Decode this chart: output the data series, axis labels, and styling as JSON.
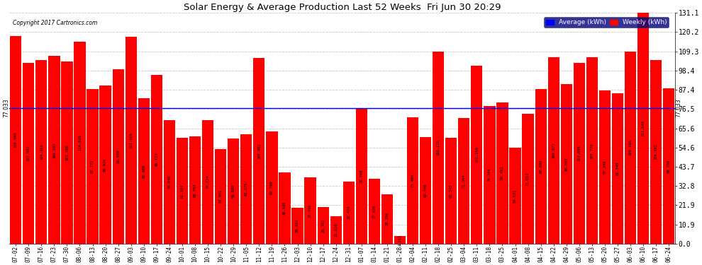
{
  "title": "Solar Energy & Average Production Last 52 Weeks  Fri Jun 30 20:29",
  "copyright": "Copyright 2017 Cartronics.com",
  "average_value": 77.033,
  "bar_color": "#FF0000",
  "average_line_color": "#0000FF",
  "background_color": "#FFFFFF",
  "ylabel_right": [
    "131.1",
    "120.2",
    "109.3",
    "98.4",
    "87.4",
    "76.5",
    "65.6",
    "54.6",
    "43.7",
    "32.8",
    "21.9",
    "10.9",
    "0.0"
  ],
  "ylabel_right_vals": [
    131.1,
    120.2,
    109.3,
    98.4,
    87.4,
    76.5,
    65.6,
    54.6,
    43.7,
    32.8,
    21.9,
    10.9,
    0.0
  ],
  "categories": [
    "07-02",
    "07-09",
    "07-16",
    "07-23",
    "07-30",
    "08-06",
    "08-13",
    "08-20",
    "08-27",
    "09-03",
    "09-10",
    "09-17",
    "09-24",
    "10-01",
    "10-08",
    "10-15",
    "10-22",
    "10-29",
    "11-05",
    "11-12",
    "11-19",
    "11-26",
    "12-03",
    "12-10",
    "12-17",
    "12-24",
    "12-31",
    "01-07",
    "01-14",
    "01-21",
    "01-28",
    "02-04",
    "02-11",
    "02-18",
    "02-25",
    "03-04",
    "03-11",
    "03-18",
    "03-25",
    "04-01",
    "04-08",
    "04-15",
    "04-22",
    "04-29",
    "05-06",
    "05-13",
    "05-20",
    "05-27",
    "06-03",
    "06-10",
    "06-17",
    "06-24"
  ],
  "values": [
    118.098,
    102.902,
    104.456,
    106.592,
    103.506,
    114.816,
    87.772,
    89.926,
    99.036,
    117.426,
    82.606,
    95.714,
    70.04,
    60.164,
    60.794,
    70.224,
    53.952,
    59.68,
    62.27,
    105.402,
    63.788,
    40.426,
    20.424,
    37.796,
    20.702,
    15.81,
    35.474,
    76.708,
    37.026,
    28.256,
    4.312,
    71.66,
    60.446,
    109.236,
    60.348,
    71.364,
    101.15,
    78.164,
    80.452,
    54.532,
    73.652,
    87.692,
    106.072,
    90.592,
    102.696,
    105.776,
    87.248,
    85.548,
    109.196,
    131.148,
    104.392,
    88.256
  ],
  "legend_avg_color": "#0000FF",
  "legend_weekly_color": "#FF0000",
  "legend_avg_text": "Average (kWh)",
  "legend_weekly_text": "Weekly (kWh)",
  "figsize": [
    9.9,
    3.75
  ],
  "dpi": 100,
  "ymax": 131.1,
  "ymin": 0.0
}
